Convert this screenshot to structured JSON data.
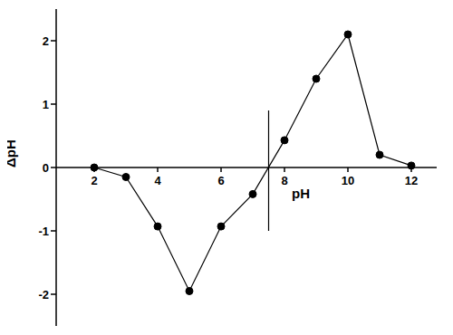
{
  "chart_data": {
    "type": "line",
    "x_label": "pH",
    "y_label": "ΔpH",
    "x": [
      2,
      3,
      4,
      5,
      6,
      7,
      8,
      9,
      10,
      11,
      12
    ],
    "values": [
      0,
      -0.15,
      -0.93,
      -1.95,
      -0.93,
      -0.42,
      0.43,
      1.4,
      2.1,
      0.2,
      0.03
    ],
    "color": "#000000",
    "marker": "circle",
    "xlim": [
      0.8,
      12.8
    ],
    "ylim": [
      -2.5,
      2.5
    ],
    "xticks": [
      2,
      4,
      6,
      8,
      10,
      12
    ],
    "yticks": [
      -2,
      -1,
      0,
      1,
      2
    ],
    "grid": false,
    "vertical_line": {
      "x": 7.5,
      "ylim": [
        -1,
        0.9
      ]
    }
  }
}
